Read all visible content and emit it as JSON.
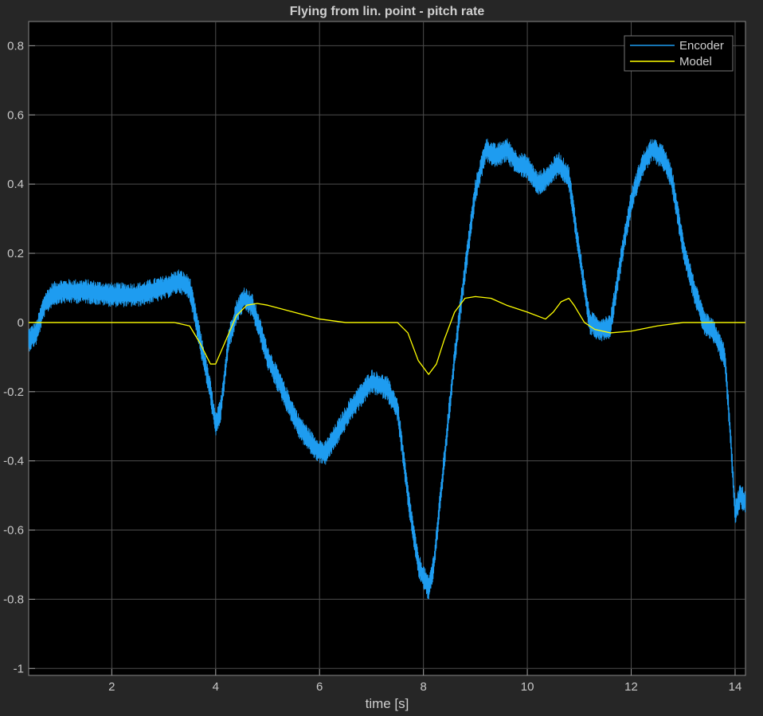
{
  "chart_data": {
    "type": "line",
    "title": "Flying from lin. point - pitch rate",
    "xlabel": "time [s]",
    "ylabel": "",
    "xlim": [
      0.4,
      14.2
    ],
    "ylim": [
      -1.02,
      0.87
    ],
    "xticks": [
      2,
      4,
      6,
      8,
      10,
      12,
      14
    ],
    "yticks": [
      -1,
      -0.8,
      -0.6,
      -0.4,
      -0.2,
      0,
      0.2,
      0.4,
      0.6,
      0.8
    ],
    "xtick_labels": [
      "2",
      "4",
      "6",
      "8",
      "10",
      "12",
      "14"
    ],
    "ytick_labels": [
      "-1",
      "-0.8",
      "-0.6",
      "-0.4",
      "-0.2",
      "0",
      "0.2",
      "0.4",
      "0.6",
      "0.8"
    ],
    "grid": true,
    "legend_position": "top-right",
    "background": "#000000",
    "series": [
      {
        "name": "Encoder",
        "color": "#1e9cf0",
        "noise_amplitude": 0.035,
        "x": [
          0.4,
          0.55,
          0.7,
          0.85,
          1.0,
          1.5,
          2.0,
          2.5,
          3.0,
          3.3,
          3.5,
          3.7,
          3.9,
          4.0,
          4.1,
          4.25,
          4.4,
          4.55,
          4.7,
          4.85,
          5.0,
          5.3,
          5.6,
          5.9,
          6.1,
          6.3,
          6.6,
          7.0,
          7.3,
          7.5,
          7.7,
          7.9,
          8.1,
          8.2,
          8.4,
          8.6,
          8.8,
          9.0,
          9.2,
          9.4,
          9.6,
          9.8,
          10.0,
          10.2,
          10.4,
          10.6,
          10.8,
          11.0,
          11.2,
          11.4,
          11.6,
          11.8,
          12.0,
          12.2,
          12.4,
          12.6,
          12.7,
          12.8,
          13.0,
          13.2,
          13.4,
          13.6,
          13.8,
          13.9,
          14.0,
          14.1,
          14.2
        ],
        "y": [
          -0.05,
          -0.03,
          0.05,
          0.08,
          0.09,
          0.09,
          0.08,
          0.08,
          0.1,
          0.12,
          0.1,
          -0.05,
          -0.2,
          -0.3,
          -0.25,
          -0.05,
          0.03,
          0.07,
          0.05,
          -0.02,
          -0.1,
          -0.2,
          -0.3,
          -0.36,
          -0.38,
          -0.33,
          -0.25,
          -0.17,
          -0.19,
          -0.25,
          -0.5,
          -0.7,
          -0.77,
          -0.7,
          -0.4,
          -0.1,
          0.15,
          0.38,
          0.5,
          0.48,
          0.5,
          0.46,
          0.45,
          0.4,
          0.42,
          0.46,
          0.42,
          0.2,
          0.0,
          -0.02,
          -0.01,
          0.18,
          0.35,
          0.45,
          0.5,
          0.48,
          0.45,
          0.4,
          0.22,
          0.1,
          0.0,
          -0.03,
          -0.1,
          -0.3,
          -0.55,
          -0.5,
          -0.52
        ]
      },
      {
        "name": "Model",
        "color": "#ffff00",
        "x": [
          0.4,
          3.2,
          3.5,
          3.7,
          3.9,
          4.0,
          4.2,
          4.4,
          4.6,
          4.8,
          5.0,
          5.5,
          6.0,
          6.5,
          7.0,
          7.5,
          7.7,
          7.9,
          8.1,
          8.25,
          8.4,
          8.6,
          8.8,
          9.0,
          9.3,
          9.6,
          10.0,
          10.35,
          10.5,
          10.65,
          10.8,
          10.9,
          11.1,
          11.3,
          11.6,
          12.0,
          12.5,
          13.0,
          13.5,
          14.2
        ],
        "y": [
          0.0,
          0.0,
          -0.01,
          -0.06,
          -0.12,
          -0.12,
          -0.05,
          0.02,
          0.05,
          0.055,
          0.05,
          0.03,
          0.01,
          0.0,
          0.0,
          0.0,
          -0.03,
          -0.11,
          -0.15,
          -0.12,
          -0.05,
          0.03,
          0.07,
          0.075,
          0.07,
          0.05,
          0.03,
          0.01,
          0.03,
          0.06,
          0.07,
          0.05,
          0.0,
          -0.02,
          -0.03,
          -0.025,
          -0.01,
          0.0,
          0.0,
          0.0
        ]
      }
    ]
  }
}
